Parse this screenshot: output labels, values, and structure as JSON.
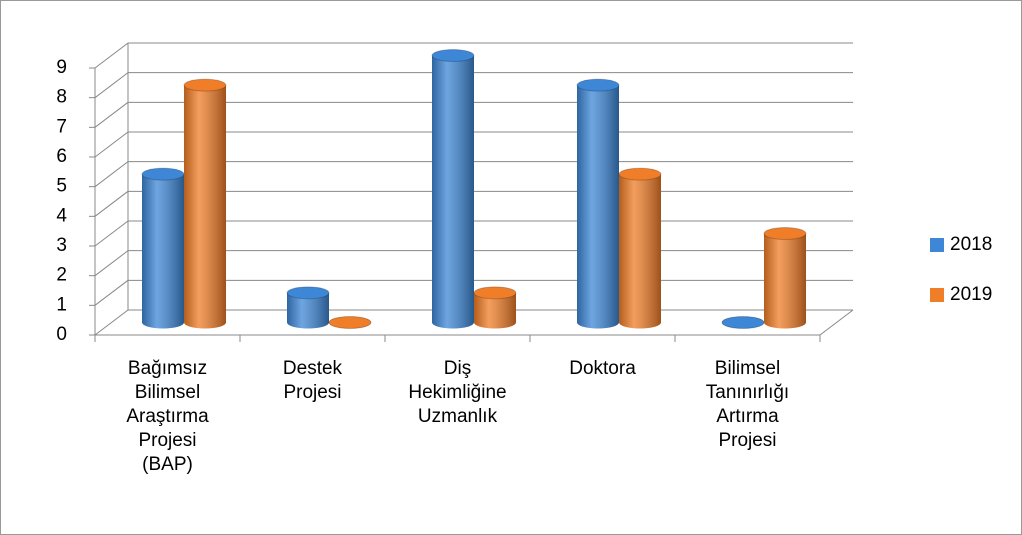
{
  "chart_data": {
    "type": "bar",
    "categories": [
      "Bağımsız Bilimsel Araştırma Projesi (BAP)",
      "Destek Projesi",
      "Diş Hekimliğine Uzmanlık",
      "Doktora",
      "Bilimsel Tanınırlığı Artırma Projesi"
    ],
    "series": [
      {
        "name": "2018",
        "color": "#3d87d6",
        "values": [
          5,
          1,
          9,
          8,
          0
        ]
      },
      {
        "name": "2019",
        "color": "#f07d28",
        "values": [
          8,
          0,
          1,
          5,
          3
        ]
      }
    ],
    "ylim": [
      0,
      9
    ],
    "yticks": [
      0,
      1,
      2,
      3,
      4,
      5,
      6,
      7,
      8,
      9
    ],
    "grid": true,
    "legend": "right"
  }
}
